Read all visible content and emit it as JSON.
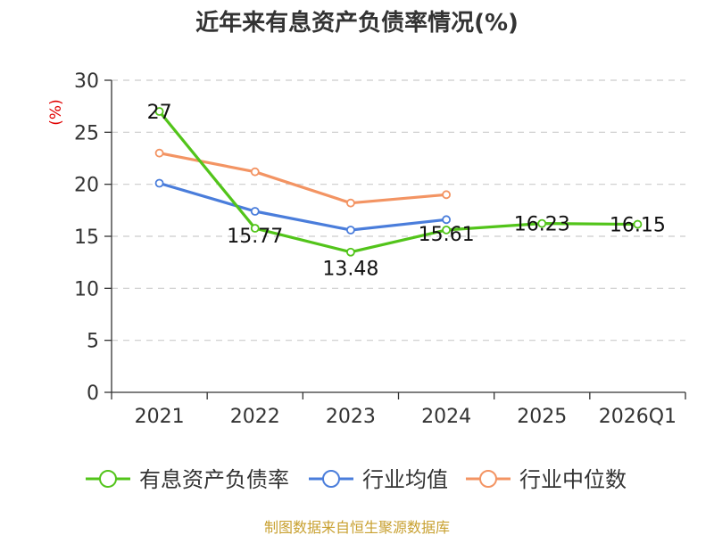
{
  "colors": {
    "series_0": "#52c41a",
    "series_1": "#4a7ddb",
    "series_2": "#f39463",
    "title": "#333333",
    "axis": "#333333",
    "grid": "#cccccc",
    "unit": "#e00000",
    "source": "#c8a030"
  },
  "chart_data": {
    "type": "line",
    "title": "近年来有息资产负债率情况(%)",
    "ylabel": "(%)",
    "xlabel": "",
    "categories": [
      "2021",
      "2022",
      "2023",
      "2024",
      "2025",
      "2026Q1"
    ],
    "ylim": [
      0,
      30
    ],
    "yticks": [
      0,
      5,
      10,
      15,
      20,
      25,
      30
    ],
    "grid": true,
    "legend_position": "bottom",
    "series": [
      {
        "name": "有息资产负债率",
        "values": [
          27,
          15.77,
          13.48,
          15.61,
          16.23,
          16.15
        ],
        "data_labels": [
          "27",
          "15.77",
          "13.48",
          "15.61",
          "16.23",
          "16.15"
        ]
      },
      {
        "name": "行业均值",
        "values": [
          20.1,
          17.4,
          15.6,
          16.6,
          null,
          null
        ]
      },
      {
        "name": "行业中位数",
        "values": [
          23,
          21.2,
          18.2,
          19,
          null,
          null
        ]
      }
    ],
    "source": "制图数据来自恒生聚源数据库"
  }
}
